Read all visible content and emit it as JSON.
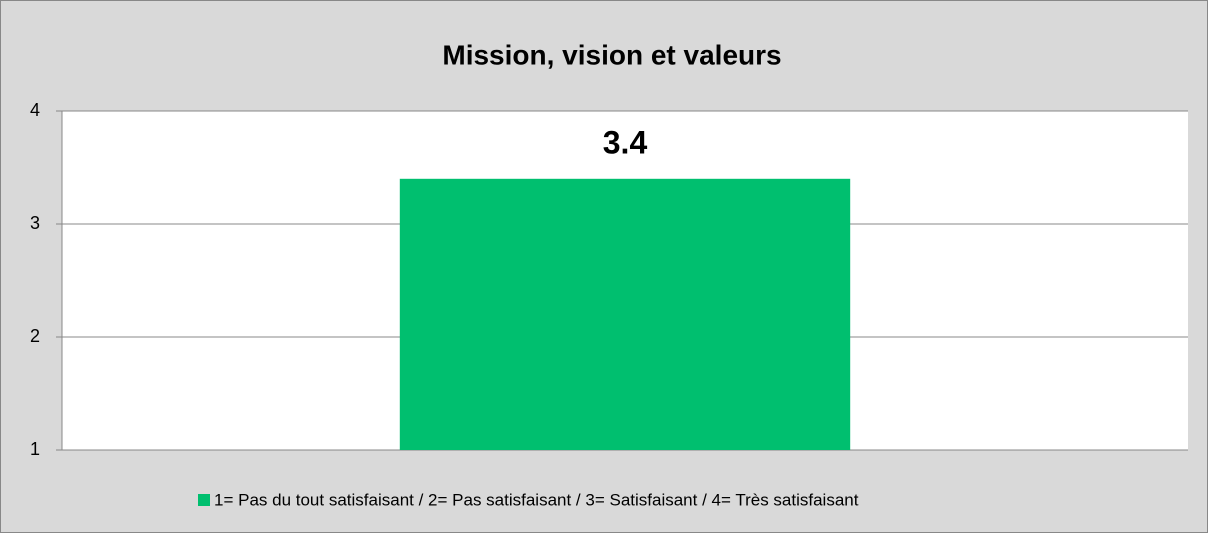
{
  "chart_data": {
    "type": "bar",
    "title": "Mission, vision et valeurs",
    "categories": [
      null
    ],
    "series": [
      {
        "name": "1= Pas du tout satisfaisant / 2= Pas satisfaisant / 3= Satisfaisant / 4= Très satisfaisant",
        "color": "#00bf6f",
        "values": [
          3.4
        ]
      }
    ],
    "ylim": [
      1,
      4
    ],
    "yticks": [
      1,
      2,
      3,
      4
    ],
    "grid": true,
    "legend": "bottom"
  }
}
